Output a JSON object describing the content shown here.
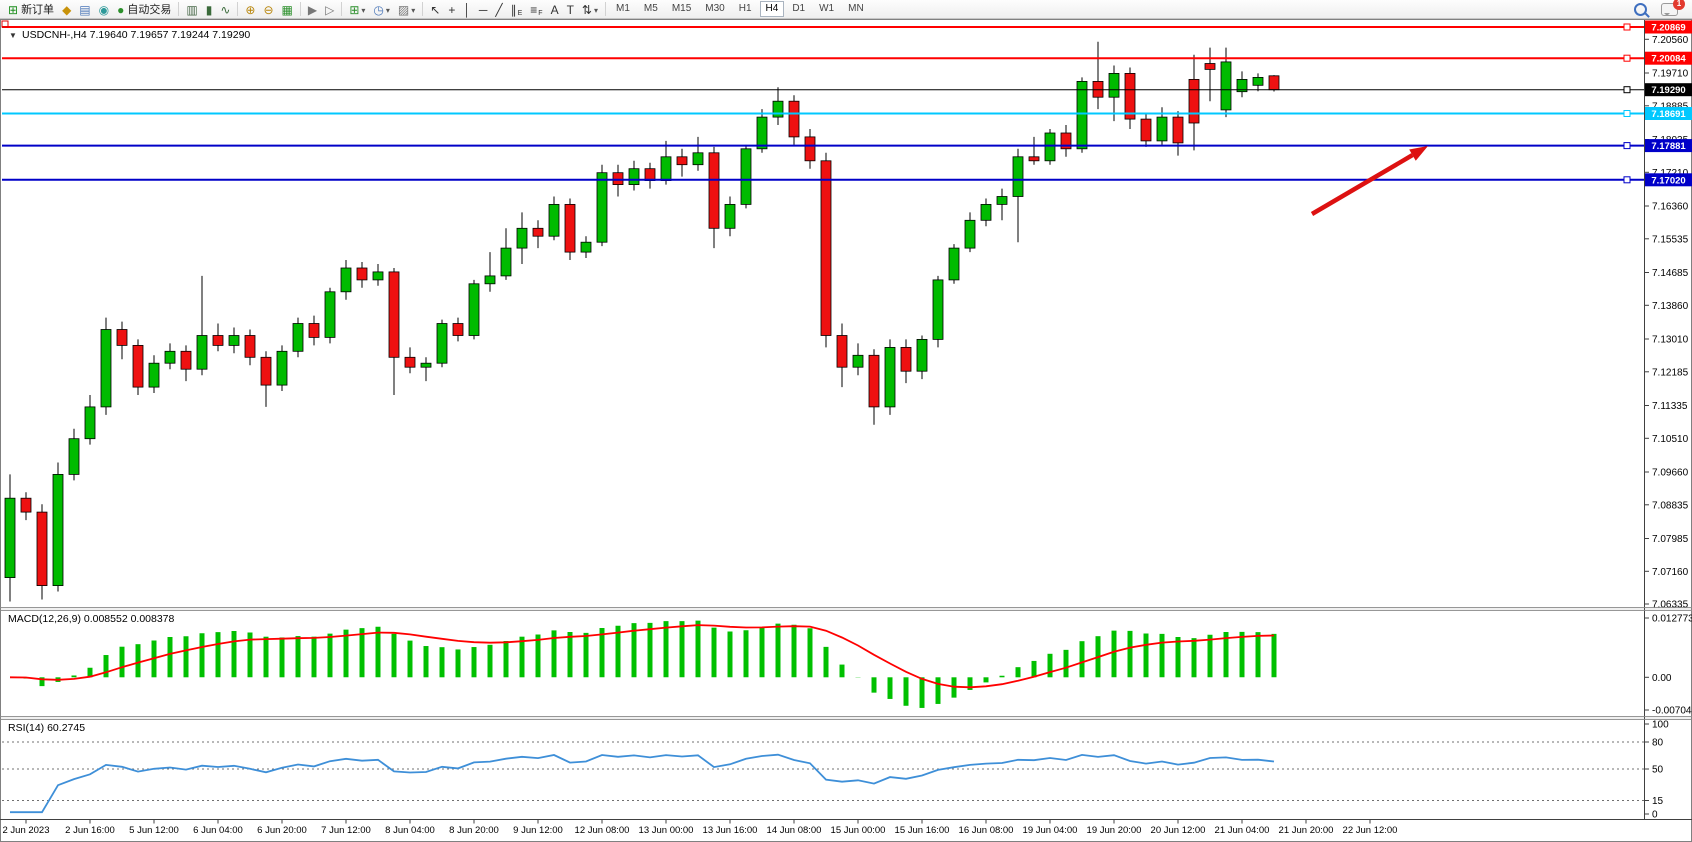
{
  "toolbar": {
    "groups": [
      {
        "name": "trade",
        "items": [
          {
            "name": "new-order",
            "glyph": "⊞",
            "color": "#1e8f1e",
            "label": "新订单"
          },
          {
            "name": "market-watch",
            "glyph": "◆",
            "color": "#c8920a"
          },
          {
            "name": "navigator",
            "glyph": "▤",
            "color": "#4a76b8"
          },
          {
            "name": "signals-radar",
            "glyph": "◉",
            "color": "#2e9a9a"
          },
          {
            "name": "autotrading",
            "glyph": "●",
            "color": "#2a8f2a",
            "label": "自动交易"
          }
        ]
      },
      {
        "name": "chart-type",
        "items": [
          {
            "name": "bar-chart",
            "glyph": "▥",
            "color": "#4a6a4a"
          },
          {
            "name": "candlestick-chart",
            "glyph": "▮",
            "color": "#3a6a3a"
          },
          {
            "name": "line-chart",
            "glyph": "∿",
            "color": "#3a6a3a"
          }
        ]
      },
      {
        "name": "zoom",
        "items": [
          {
            "name": "zoom-in",
            "glyph": "⊕",
            "color": "#b8860b"
          },
          {
            "name": "zoom-out",
            "glyph": "⊖",
            "color": "#b8860b"
          },
          {
            "name": "tile-windows",
            "glyph": "▦",
            "color": "#2a8f2a"
          }
        ]
      },
      {
        "name": "scroll",
        "items": [
          {
            "name": "auto-scroll",
            "glyph": "▶",
            "color": "#777777"
          },
          {
            "name": "chart-shift",
            "glyph": "▷",
            "color": "#777777"
          }
        ]
      },
      {
        "name": "objects",
        "items": [
          {
            "name": "indicators",
            "glyph": "⊞",
            "color": "#2a8f2a",
            "caret": true
          },
          {
            "name": "periods",
            "glyph": "◷",
            "color": "#4a76b8",
            "caret": true
          },
          {
            "name": "templates",
            "glyph": "▨",
            "color": "#777777",
            "caret": true
          }
        ]
      },
      {
        "name": "tools",
        "items": [
          {
            "name": "cursor",
            "glyph": "↖",
            "color": "#333333"
          },
          {
            "name": "crosshair",
            "glyph": "+",
            "color": "#333333"
          },
          {
            "name": "vertical-line",
            "glyph": "│",
            "color": "#333333"
          },
          {
            "name": "horizontal-line",
            "glyph": "─",
            "color": "#333333"
          },
          {
            "name": "trendline",
            "glyph": "╱",
            "color": "#333333"
          },
          {
            "name": "equidistant-channel",
            "glyph": "∥",
            "color": "#333333",
            "sub": "E"
          },
          {
            "name": "fibonacci",
            "glyph": "≡",
            "color": "#333333",
            "sub": "F"
          },
          {
            "name": "text",
            "glyph": "A",
            "color": "#333333"
          },
          {
            "name": "text-label",
            "glyph": "T",
            "color": "#333333"
          },
          {
            "name": "arrows",
            "glyph": "⇅",
            "color": "#333333",
            "caret": true
          }
        ]
      }
    ],
    "timeframes": [
      "M1",
      "M5",
      "M15",
      "M30",
      "H1",
      "H4",
      "D1",
      "W1",
      "MN"
    ],
    "active_timeframe": "H4",
    "notifications": "1"
  },
  "chart": {
    "symbol_header": "USDCNH-,H4 7.19640 7.19657 7.19244 7.19290",
    "collapse_icon": "▼",
    "macd_label": "MACD(12,26,9) 0.008552 0.008378",
    "rsi_label": "RSI(14) 60.2745"
  },
  "chart_data": {
    "type": "candlestick",
    "symbol": "USDCNH-",
    "timeframe": "H4",
    "ohlc_display": {
      "open": "7.19640",
      "high": "7.19657",
      "low": "7.19244",
      "close": "7.19290"
    },
    "ylim": [
      7.0545,
      7.2087
    ],
    "colors": {
      "bull": "#00BB00",
      "bear": "#EE1111",
      "wick": "#000000"
    },
    "y_ticks": [
      "7.20560",
      "7.19710",
      "7.18885",
      "7.18035",
      "7.17210",
      "7.16360",
      "7.15535",
      "7.14685",
      "7.13860",
      "7.13010",
      "7.12185",
      "7.11335",
      "7.10510",
      "7.09660",
      "7.08835",
      "7.07985",
      "7.07160",
      "7.06335"
    ],
    "hlines": [
      {
        "price": 7.20869,
        "label": "7.20869",
        "color": "#FF0000",
        "width": 2
      },
      {
        "price": 7.20084,
        "label": "7.20084",
        "color": "#FF0000",
        "width": 2
      },
      {
        "price": 7.1929,
        "label": "7.19290",
        "color": "#000000",
        "width": 1
      },
      {
        "price": 7.18691,
        "label": "7.18691",
        "color": "#00C8FF",
        "width": 2
      },
      {
        "price": 7.17881,
        "label": "7.17881",
        "color": "#0000C8",
        "width": 2
      },
      {
        "price": 7.1702,
        "label": "7.17020",
        "color": "#0000C8",
        "width": 2
      }
    ],
    "arrow": {
      "color": "#DD1111",
      "from": [
        1312,
        214
      ],
      "to": [
        1428,
        146
      ]
    },
    "time_labels": [
      "2 Jun 2023",
      "2 Jun 16:00",
      "5 Jun 12:00",
      "6 Jun 04:00",
      "6 Jun 20:00",
      "7 Jun 12:00",
      "8 Jun 04:00",
      "8 Jun 20:00",
      "9 Jun 12:00",
      "12 Jun 08:00",
      "13 Jun 00:00",
      "13 Jun 16:00",
      "14 Jun 08:00",
      "15 Jun 00:00",
      "15 Jun 16:00",
      "16 Jun 08:00",
      "19 Jun 04:00",
      "19 Jun 20:00",
      "20 Jun 12:00",
      "21 Jun 04:00",
      "21 Jun 20:00",
      "22 Jun 12:00"
    ],
    "ohlc": [
      [
        7.07,
        7.096,
        7.064,
        7.09
      ],
      [
        7.09,
        7.0915,
        7.0845,
        7.0865
      ],
      [
        7.0865,
        7.0885,
        7.0645,
        7.068
      ],
      [
        7.068,
        7.099,
        7.0665,
        7.096
      ],
      [
        7.096,
        7.1075,
        7.0945,
        7.105
      ],
      [
        7.105,
        7.116,
        7.1035,
        7.113
      ],
      [
        7.113,
        7.1355,
        7.111,
        7.1325
      ],
      [
        7.1325,
        7.1345,
        7.125,
        7.1285
      ],
      [
        7.1285,
        7.13,
        7.116,
        7.118
      ],
      [
        7.118,
        7.126,
        7.1165,
        7.124
      ],
      [
        7.124,
        7.129,
        7.1225,
        7.127
      ],
      [
        7.127,
        7.1285,
        7.1195,
        7.1225
      ],
      [
        7.1225,
        7.146,
        7.121,
        7.131
      ],
      [
        7.131,
        7.134,
        7.127,
        7.1285
      ],
      [
        7.1285,
        7.133,
        7.1265,
        7.131
      ],
      [
        7.131,
        7.1325,
        7.1235,
        7.1255
      ],
      [
        7.1255,
        7.127,
        7.113,
        7.1185
      ],
      [
        7.1185,
        7.1285,
        7.117,
        7.127
      ],
      [
        7.127,
        7.1355,
        7.1255,
        7.134
      ],
      [
        7.134,
        7.136,
        7.1285,
        7.1305
      ],
      [
        7.1305,
        7.143,
        7.129,
        7.142
      ],
      [
        7.142,
        7.15,
        7.14,
        7.148
      ],
      [
        7.148,
        7.1495,
        7.143,
        7.145
      ],
      [
        7.145,
        7.149,
        7.1435,
        7.147
      ],
      [
        7.147,
        7.148,
        7.116,
        7.1255
      ],
      [
        7.1255,
        7.128,
        7.1215,
        7.123
      ],
      [
        7.123,
        7.1255,
        7.1195,
        7.124
      ],
      [
        7.124,
        7.135,
        7.123,
        7.134
      ],
      [
        7.134,
        7.1355,
        7.1295,
        7.131
      ],
      [
        7.131,
        7.145,
        7.13,
        7.144
      ],
      [
        7.144,
        7.152,
        7.142,
        7.146
      ],
      [
        7.146,
        7.158,
        7.145,
        7.153
      ],
      [
        7.153,
        7.162,
        7.149,
        7.158
      ],
      [
        7.158,
        7.16,
        7.153,
        7.156
      ],
      [
        7.156,
        7.166,
        7.155,
        7.164
      ],
      [
        7.164,
        7.1655,
        7.15,
        7.152
      ],
      [
        7.152,
        7.156,
        7.1505,
        7.1545
      ],
      [
        7.1545,
        7.174,
        7.1535,
        7.172
      ],
      [
        7.172,
        7.174,
        7.166,
        7.169
      ],
      [
        7.169,
        7.175,
        7.1675,
        7.173
      ],
      [
        7.173,
        7.1745,
        7.168,
        7.17
      ],
      [
        7.17,
        7.18,
        7.169,
        7.176
      ],
      [
        7.176,
        7.178,
        7.171,
        7.174
      ],
      [
        7.174,
        7.181,
        7.1725,
        7.177
      ],
      [
        7.177,
        7.1785,
        7.153,
        7.158
      ],
      [
        7.158,
        7.166,
        7.156,
        7.164
      ],
      [
        7.164,
        7.179,
        7.163,
        7.178
      ],
      [
        7.178,
        7.188,
        7.177,
        7.186
      ],
      [
        7.186,
        7.1935,
        7.184,
        7.19
      ],
      [
        7.19,
        7.1915,
        7.179,
        7.181
      ],
      [
        7.181,
        7.183,
        7.173,
        7.175
      ],
      [
        7.175,
        7.177,
        7.128,
        7.131
      ],
      [
        7.131,
        7.134,
        7.118,
        7.123
      ],
      [
        7.123,
        7.129,
        7.121,
        7.126
      ],
      [
        7.126,
        7.1275,
        7.1085,
        7.113
      ],
      [
        7.113,
        7.13,
        7.111,
        7.128
      ],
      [
        7.128,
        7.13,
        7.119,
        7.122
      ],
      [
        7.122,
        7.131,
        7.12,
        7.13
      ],
      [
        7.13,
        7.146,
        7.128,
        7.145
      ],
      [
        7.145,
        7.154,
        7.144,
        7.153
      ],
      [
        7.153,
        7.162,
        7.152,
        7.16
      ],
      [
        7.16,
        7.1655,
        7.1585,
        7.164
      ],
      [
        7.164,
        7.168,
        7.16,
        7.166
      ],
      [
        7.166,
        7.178,
        7.1545,
        7.176
      ],
      [
        7.176,
        7.181,
        7.174,
        7.175
      ],
      [
        7.175,
        7.183,
        7.174,
        7.182
      ],
      [
        7.182,
        7.184,
        7.176,
        7.178
      ],
      [
        7.178,
        7.196,
        7.177,
        7.195
      ],
      [
        7.195,
        7.205,
        7.188,
        7.191
      ],
      [
        7.191,
        7.199,
        7.185,
        7.197
      ],
      [
        7.197,
        7.1985,
        7.183,
        7.1855
      ],
      [
        7.1855,
        7.187,
        7.1785,
        7.18
      ],
      [
        7.18,
        7.1885,
        7.179,
        7.186
      ],
      [
        7.186,
        7.1875,
        7.1763,
        7.1795
      ],
      [
        7.1955,
        7.2017,
        7.1776,
        7.1845
      ],
      [
        7.1995,
        7.2035,
        7.19,
        7.198
      ],
      [
        7.1878,
        7.2035,
        7.186,
        7.1999
      ],
      [
        7.1924,
        7.1975,
        7.191,
        7.1955
      ],
      [
        7.194,
        7.197,
        7.1925,
        7.196
      ],
      [
        7.1964,
        7.19657,
        7.19244,
        7.1929
      ]
    ],
    "macd": {
      "label": "MACD(12,26,9) 0.008552 0.008378",
      "params": [
        12,
        26,
        9
      ],
      "value_main": "0.008552",
      "value_signal": "0.008378",
      "axis_labels": [
        "0.012773",
        "0.00",
        "-0.007044"
      ],
      "ylim": [
        -0.007044,
        0.012773
      ],
      "histogram_color": "#00C000",
      "signal_color": "#FF0000"
    },
    "rsi": {
      "label": "RSI(14) 60.2745",
      "period": 14,
      "value": "60.2745",
      "levels": [
        80,
        50,
        15
      ],
      "axis_labels": [
        "100",
        "80",
        "50",
        "15",
        "0"
      ],
      "ylim": [
        0,
        100
      ],
      "line_color": "#3E8FD8"
    }
  }
}
